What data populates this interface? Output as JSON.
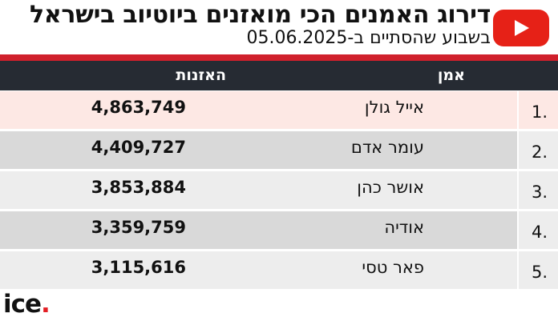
{
  "header": {
    "title": "דירוג האמנים הכי מואזנים ביוטיוב בישראל",
    "subtitle": "בשבוע שהסתיים ב-05.06.2025"
  },
  "table": {
    "columns": {
      "artist": "אמן",
      "listens": "האזנות"
    },
    "rows": [
      {
        "rank": "1.",
        "artist": "אייל גולן",
        "listens": "4,863,749",
        "bg": "#fde8e4",
        "num_bg": "#fde8e4"
      },
      {
        "rank": "2.",
        "artist": "עומר אדם",
        "listens": "4,409,727",
        "bg": "#d9d9d9",
        "num_bg": "#ededed"
      },
      {
        "rank": "3.",
        "artist": "אושר כהן",
        "listens": "3,853,884",
        "bg": "#ededed",
        "num_bg": "#ededed"
      },
      {
        "rank": "4.",
        "artist": "אודיה",
        "listens": "3,359,759",
        "bg": "#d9d9d9",
        "num_bg": "#ededed"
      },
      {
        "rank": "5.",
        "artist": "פאר טסי",
        "listens": "3,115,616",
        "bg": "#ededed",
        "num_bg": "#ededed"
      }
    ]
  },
  "branding": {
    "platform_icon": "youtube-icon",
    "publisher_logo": {
      "text": "ice",
      "dot": "."
    }
  },
  "colors": {
    "accent_red": "#d0202c",
    "header_bg": "#262b33",
    "youtube_red": "#e62117"
  }
}
